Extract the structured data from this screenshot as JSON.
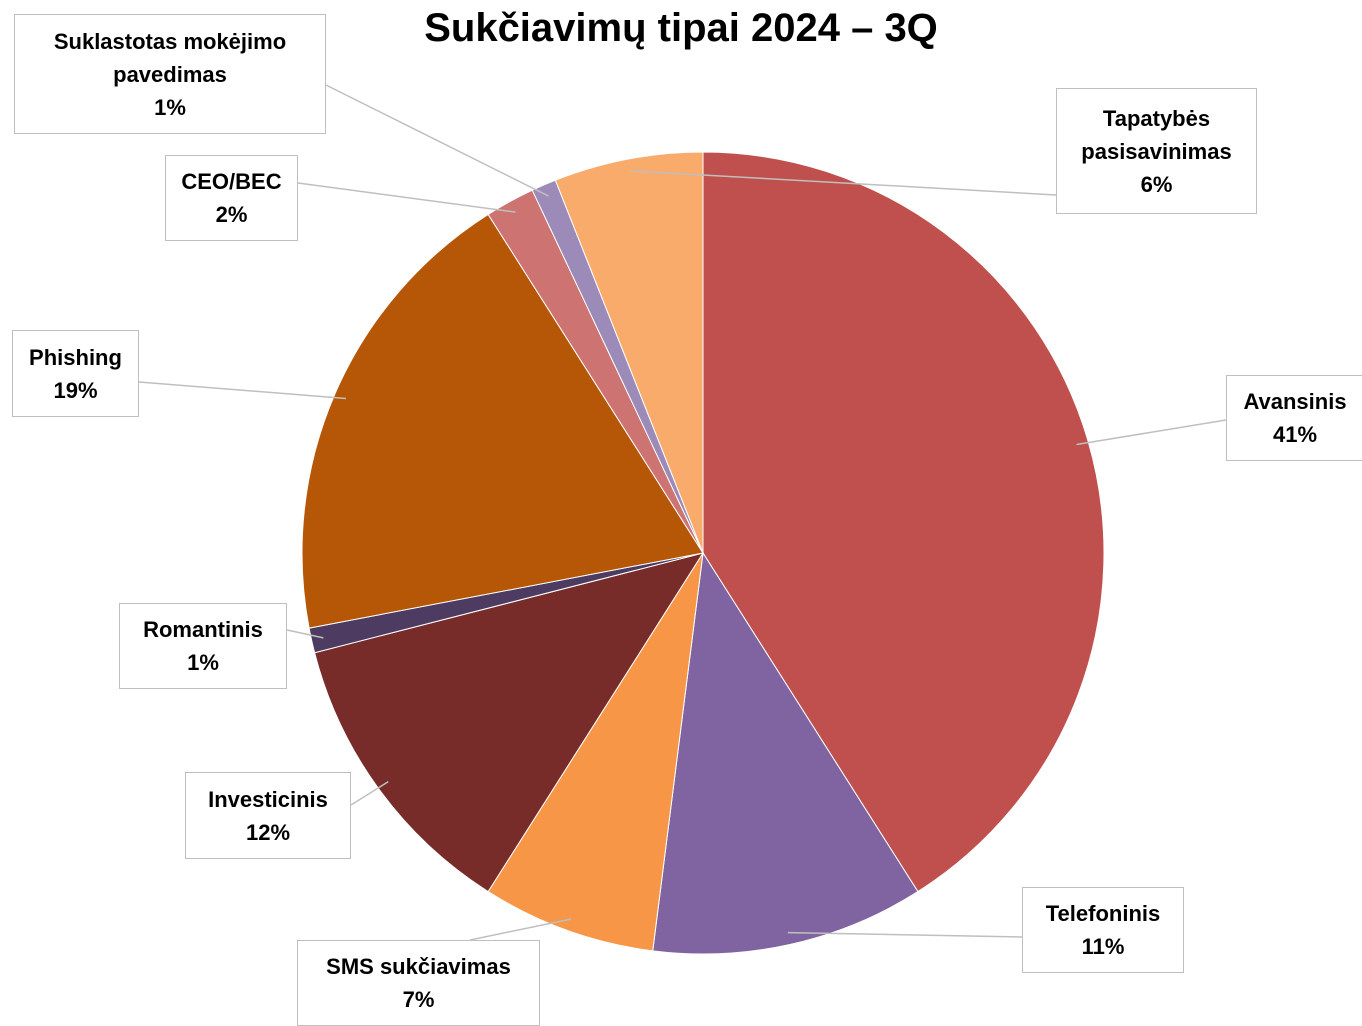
{
  "chart_data": {
    "type": "pie",
    "title": "Sukčiavimų tipai 2024 – 3Q",
    "categories": [
      "Avansinis",
      "Telefoninis",
      "SMS sukčiavimas",
      "Investicinis",
      "Romantinis",
      "Phishing",
      "CEO/BEC",
      "Suklastotas mokėjimo pavedimas",
      "Tapatybės pasisavinimas"
    ],
    "values": [
      41,
      11,
      7,
      12,
      1,
      19,
      2,
      1,
      6
    ],
    "value_labels": [
      "41%",
      "11%",
      "7%",
      "12%",
      "1%",
      "19%",
      "2%",
      "1%",
      "6%"
    ],
    "colors": [
      "#c0504d",
      "#8064a2",
      "#f79646",
      "#772c2a",
      "#4d3b62",
      "#b65708",
      "#cd7371",
      "#9c8ab9",
      "#f9ab6b"
    ]
  }
}
